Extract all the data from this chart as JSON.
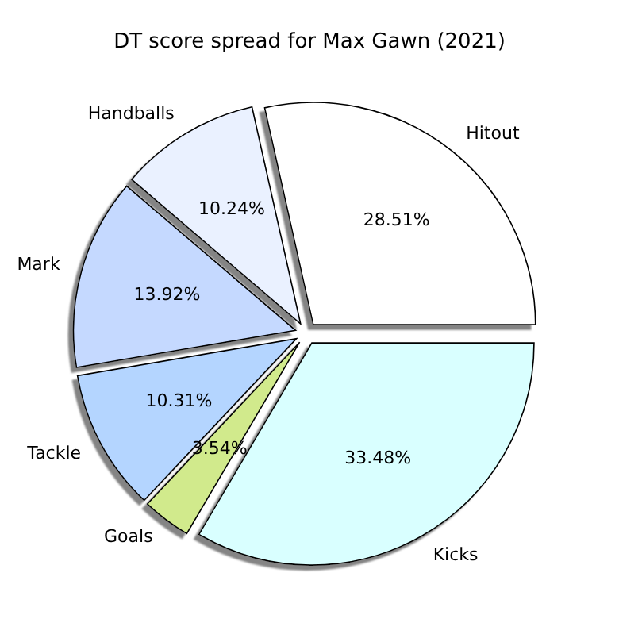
{
  "chart_data": {
    "type": "pie",
    "title": "DT score spread for Max Gawn (2021)",
    "categories": [
      "Hitout",
      "Handballs",
      "Mark",
      "Tackle",
      "Goals",
      "Kicks"
    ],
    "values": [
      28.51,
      10.24,
      13.92,
      10.31,
      3.54,
      33.48
    ],
    "colors": [
      "#ffffff",
      "#eaf1ff",
      "#c5d9ff",
      "#b4d5ff",
      "#d1ea8c",
      "#d9ffff"
    ],
    "value_labels": [
      "28.51%",
      "10.24%",
      "13.92%",
      "10.31%",
      "3.54%",
      "33.48%"
    ]
  }
}
